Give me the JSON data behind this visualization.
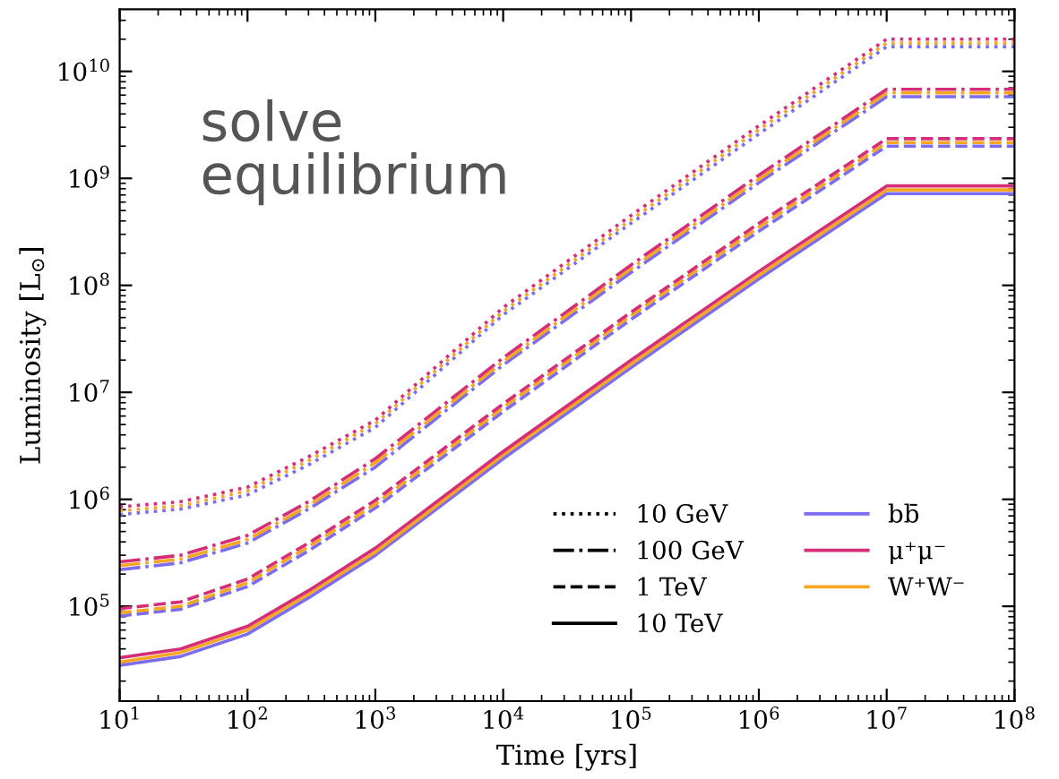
{
  "chart_data": {
    "type": "line",
    "xlabel": "Time [yrs]",
    "ylabel": "Luminosity [L$_{⊙}$]",
    "log": "xy",
    "grid": false,
    "legend": "bottom right",
    "marker": "none",
    "xlim": [
      10,
      100000000
    ],
    "ylim": [
      13000,
      38000000000
    ],
    "xticks": [
      {
        "value": 10,
        "label": "10$^{1}$"
      },
      {
        "value": 100,
        "label": "10$^{2}$"
      },
      {
        "value": 1000,
        "label": "10$^{3}$"
      },
      {
        "value": 10000,
        "label": "10$^{4}$"
      },
      {
        "value": 100000,
        "label": "10$^{5}$"
      },
      {
        "value": 1000000,
        "label": "10$^{6}$"
      },
      {
        "value": 10000000,
        "label": "10$^{7}$"
      },
      {
        "value": 100000000,
        "label": "10$^{8}$"
      }
    ],
    "yticks": [
      {
        "value": 100000,
        "label": "10$^{5}$"
      },
      {
        "value": 1000000,
        "label": "10$^{6}$"
      },
      {
        "value": 10000000,
        "label": "10$^{7}$"
      },
      {
        "value": 100000000,
        "label": "10$^{8}$"
      },
      {
        "value": 1000000000,
        "label": "10$^{9}$"
      },
      {
        "value": 10000000000,
        "label": "10$^{10}$"
      }
    ],
    "x": [
      10,
      30,
      100,
      300,
      1000,
      10000,
      100000,
      1000000,
      10000000,
      100000000
    ],
    "annotations": [
      "solve\nequilibrium"
    ],
    "series": [
      {
        "color": "#7b6cf0",
        "line_style": "dotted",
        "values": [
          720000,
          810000,
          1100000,
          2100000,
          4700000,
          53000000,
          380000000,
          2600000000,
          17000000000,
          17000000000
        ]
      },
      {
        "color": "#f5a623",
        "line_style": "dotted",
        "values": [
          780000,
          870000,
          1200000,
          2300000,
          5100000,
          57000000,
          410000000,
          2850000000,
          18400000000,
          18400000000
        ]
      },
      {
        "color": "#d62d79",
        "line_style": "dotted",
        "values": [
          850000,
          950000,
          1300000,
          2500000,
          5500000,
          62000000,
          450000000,
          3100000000,
          20000000000,
          20000000000
        ]
      },
      {
        "color": "#7b6cf0",
        "line_style": "dashdot",
        "values": [
          220000,
          255000,
          390000,
          810000,
          2000000,
          18000000,
          132000000,
          910000000,
          5800000000,
          5800000000
        ]
      },
      {
        "color": "#f5a623",
        "line_style": "dashdot",
        "values": [
          240000,
          276000,
          420000,
          870000,
          2200000,
          19300000,
          143000000,
          980000000,
          6300000000,
          6300000000
        ]
      },
      {
        "color": "#d62d79",
        "line_style": "dashdot",
        "values": [
          260000,
          300000,
          460000,
          950000,
          2400000,
          21000000,
          155000000,
          1070000000,
          6800000000,
          6800000000
        ]
      },
      {
        "color": "#7b6cf0",
        "line_style": "dashed",
        "values": [
          81000,
          94000,
          153000,
          330000,
          830000,
          6600000,
          48000000,
          320000000,
          2000000000,
          2000000000
        ]
      },
      {
        "color": "#f5a623",
        "line_style": "dashed",
        "values": [
          87000,
          100000,
          166000,
          360000,
          900000,
          7200000,
          52000000,
          350000000,
          2160000000,
          2160000000
        ]
      },
      {
        "color": "#d62d79",
        "line_style": "dashed",
        "values": [
          95000,
          110000,
          180000,
          390000,
          980000,
          7800000,
          56000000,
          380000000,
          2350000000,
          2350000000
        ]
      },
      {
        "color": "#7b6cf0",
        "line_style": "solid",
        "values": [
          28000,
          34000,
          55000,
          120000,
          300000,
          2400000,
          17000000,
          115000000,
          720000000,
          720000000
        ]
      },
      {
        "color": "#f5a623",
        "line_style": "solid",
        "values": [
          30000,
          37000,
          60000,
          130000,
          320000,
          2600000,
          18400000,
          124000000,
          780000000,
          780000000
        ]
      },
      {
        "color": "#d62d79",
        "line_style": "solid",
        "values": [
          33000,
          40000,
          65000,
          140000,
          350000,
          2800000,
          20000000,
          135000000,
          850000000,
          850000000
        ]
      },
      {
        "name": "10 GeV",
        "color": "#000000",
        "line_style": "dotted",
        "values": [
          null,
          null,
          null,
          null,
          null,
          null,
          null,
          null,
          null,
          null
        ]
      },
      {
        "name": "100 GeV",
        "color": "#000000",
        "line_style": "dashdot",
        "values": [
          null,
          null,
          null,
          null,
          null,
          null,
          null,
          null,
          null,
          null
        ]
      },
      {
        "name": "1 TeV",
        "color": "#000000",
        "line_style": "dashed",
        "values": [
          null,
          null,
          null,
          null,
          null,
          null,
          null,
          null,
          null,
          null
        ]
      },
      {
        "name": "10 TeV",
        "color": "#000000",
        "line_style": "solid",
        "values": [
          null,
          null,
          null,
          null,
          null,
          null,
          null,
          null,
          null,
          null
        ]
      },
      {
        "name": "bb̄",
        "color": "#7b6cf0",
        "line_style": "solid",
        "values": [
          null,
          null,
          null,
          null,
          null,
          null,
          null,
          null,
          null,
          null
        ]
      },
      {
        "name": "μ⁺μ⁻",
        "color": "#d62d79",
        "line_style": "solid",
        "values": [
          null,
          null,
          null,
          null,
          null,
          null,
          null,
          null,
          null,
          null
        ]
      },
      {
        "name": "W⁺W⁻",
        "color": "#f5a623",
        "line_style": "solid",
        "values": [
          null,
          null,
          null,
          null,
          null,
          null,
          null,
          null,
          null,
          null
        ]
      }
    ]
  }
}
